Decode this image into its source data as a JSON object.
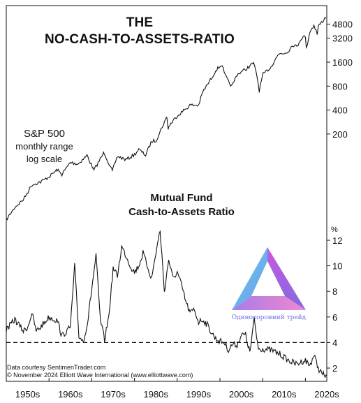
{
  "title": {
    "line1": "THE",
    "line2": "NO-CASH-TO-ASSETS-RATIO"
  },
  "sp_label": {
    "line1": "S&P 500",
    "line2": "monthly range",
    "line3": "log scale"
  },
  "mf_label": {
    "line1": "Mutual Fund",
    "line2": "Cash-to-Assets Ratio"
  },
  "credits": {
    "line1": "Data courtesy SentimenTrader.com",
    "line2": "© November 2024 Elliott Wave International (www.elliottwave.com)"
  },
  "watermark": {
    "caption": "Одинохоронний трейд",
    "icon": "triangle-logo-icon"
  },
  "colors": {
    "line": "#111111",
    "logo_purple": "#9b4fd6",
    "logo_blue": "#4cc4ee",
    "logo_pink": "#ef78d0"
  },
  "chart_data": [
    {
      "type": "line",
      "name": "S&P 500",
      "scale": "log",
      "yticks": [
        200,
        400,
        800,
        1600,
        3200,
        4800
      ],
      "ylim": [
        15,
        6200
      ],
      "xlim": [
        1950,
        2025
      ],
      "x": [
        1950,
        1952,
        1954,
        1956,
        1958,
        1960,
        1961.9,
        1963,
        1965,
        1966.8,
        1968.9,
        1970.5,
        1972.9,
        1974.8,
        1976,
        1978,
        1980,
        1981,
        1982.6,
        1984,
        1985,
        1987.6,
        1987.9,
        1988,
        1990,
        1991,
        1993,
        1995,
        1996,
        1998,
        1999,
        2000.5,
        2001,
        2002,
        2002.8,
        2004,
        2006,
        2007.8,
        2008.5,
        2009.2,
        2010,
        2011,
        2012,
        2013,
        2014,
        2015,
        2016,
        2017,
        2018,
        2019,
        2020,
        2020.2,
        2021,
        2022,
        2022.8,
        2023,
        2024,
        2024.8
      ],
      "values": [
        16.7,
        24,
        30,
        46,
        50,
        58,
        71,
        62,
        88,
        84,
        108,
        70,
        118,
        68,
        105,
        95,
        110,
        128,
        108,
        162,
        165,
        330,
        225,
        250,
        340,
        375,
        460,
        460,
        680,
        1000,
        1260,
        1500,
        1150,
        900,
        800,
        1120,
        1300,
        1550,
        1200,
        700,
        1100,
        1250,
        1400,
        1800,
        2050,
        2070,
        2200,
        2650,
        2500,
        3200,
        3400,
        2350,
        3800,
        4700,
        3600,
        4500,
        5250,
        5900
      ]
    },
    {
      "type": "line",
      "name": "Mutual Fund Cash-to-Assets Ratio",
      "unit": "%",
      "yticks": [
        2,
        4,
        6,
        8,
        10,
        12
      ],
      "ylim": [
        1.2,
        12.5
      ],
      "xlim": [
        1950,
        2025
      ],
      "reference_line": 4,
      "x": [
        1950,
        1952,
        1954,
        1955,
        1956,
        1957,
        1958,
        1960,
        1962,
        1963,
        1965,
        1966,
        1967,
        1968,
        1969,
        1970,
        1971,
        1972,
        1973,
        1974,
        1975,
        1976,
        1977,
        1978,
        1979,
        1980,
        1981,
        1982,
        1983,
        1984,
        1985,
        1986,
        1987,
        1988,
        1989,
        1990,
        1991,
        1992,
        1993,
        1994,
        1995,
        1996,
        1997,
        1998,
        1999,
        2000,
        2001,
        2002,
        2003,
        2004,
        2005,
        2006,
        2007,
        2008,
        2009,
        2010,
        2012,
        2014,
        2016,
        2018,
        2019,
        2020,
        2021,
        2022,
        2023,
        2024,
        2025
      ],
      "values": [
        5,
        5.8,
        4.9,
        5.2,
        6.3,
        4.9,
        5.2,
        6,
        5.7,
        4.5,
        5.2,
        10,
        4.5,
        4.1,
        5.5,
        8.2,
        10.8,
        5.8,
        4.2,
        6.1,
        9.8,
        9.2,
        11.5,
        10.8,
        10,
        9.5,
        10,
        11,
        10,
        9,
        11,
        12.8,
        8,
        10.5,
        9,
        9.5,
        8.5,
        7.2,
        6.3,
        6.6,
        5.6,
        5.8,
        5.4,
        4.8,
        4.3,
        4.1,
        4,
        3.4,
        3.9,
        3.8,
        4.6,
        4.6,
        3.2,
        5.8,
        3.5,
        3.5,
        3.4,
        3.1,
        2.6,
        2.3,
        2.5,
        2.6,
        2.2,
        3,
        2,
        1.5,
        1.4
      ]
    }
  ],
  "x_axis": {
    "ticks": [
      "1950s",
      "1960s",
      "1970s",
      "1980s",
      "1990s",
      "2000s",
      "2010s",
      "2020s"
    ],
    "grid": false
  },
  "y_axis_top_ticks": [
    "4800",
    "3200",
    "1600",
    "800",
    "400",
    "200"
  ],
  "y_axis_bottom_ticks": [
    "12",
    "10",
    "8",
    "6",
    "4",
    "2"
  ],
  "y_axis_bottom_unit": "%"
}
